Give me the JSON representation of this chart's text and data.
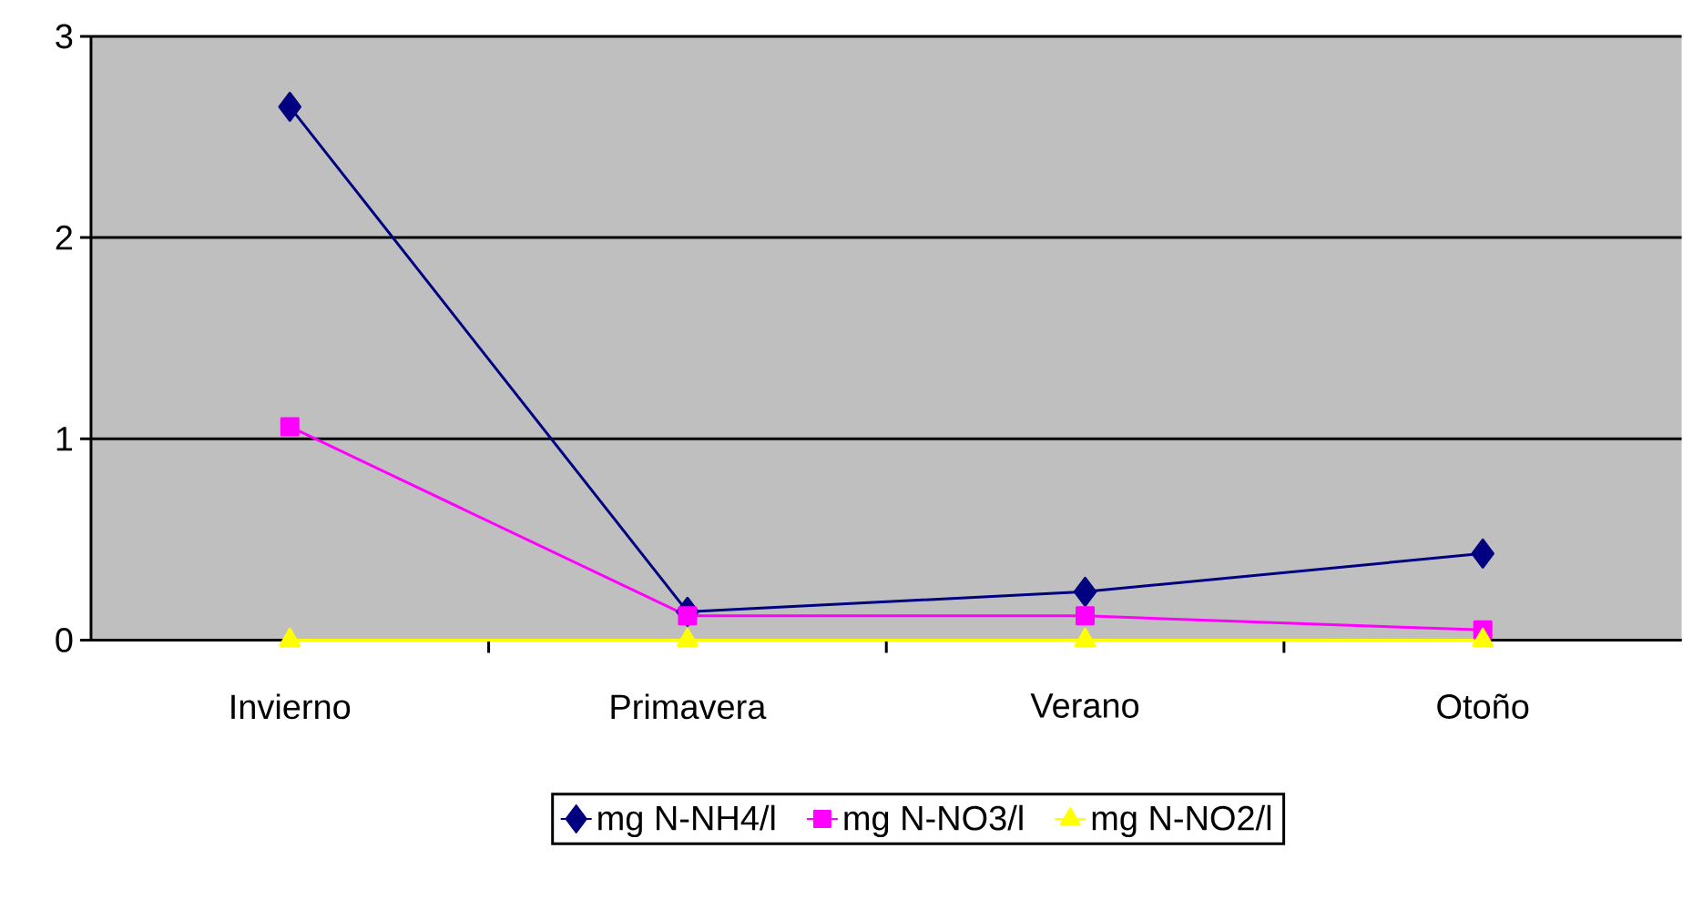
{
  "chart_data": {
    "type": "line",
    "categories": [
      "Invierno",
      "Primavera",
      "Verano",
      "Otoño"
    ],
    "series": [
      {
        "name": "mg N-NH4/l",
        "color": "#000080",
        "marker": "diamond",
        "values": [
          2.65,
          0.14,
          0.24,
          0.43
        ]
      },
      {
        "name": "mg N-NO3/l",
        "color": "#ff00ff",
        "marker": "square",
        "values": [
          1.06,
          0.12,
          0.12,
          0.05
        ]
      },
      {
        "name": "mg N-NO2/l",
        "color": "#ffff00",
        "marker": "triangle",
        "values": [
          0,
          0,
          0,
          0
        ]
      }
    ],
    "ylim": [
      0,
      3
    ],
    "yticks": [
      0,
      1,
      2,
      3
    ],
    "grid": "y",
    "legend": "bottom",
    "line_style": "solid"
  }
}
